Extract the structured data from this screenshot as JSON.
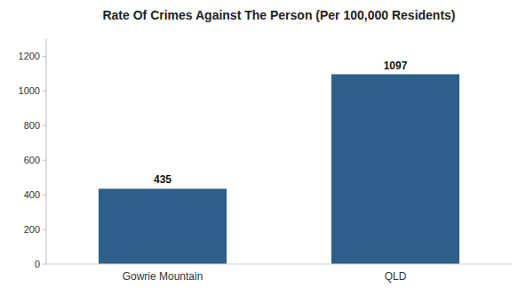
{
  "chart_data": {
    "type": "bar",
    "title": "Rate Of Crimes Against The Person (Per 100,000 Residents)",
    "categories": [
      "Gowrie Mountain",
      "QLD"
    ],
    "values": [
      435,
      1097
    ],
    "color": "#2d5f8a",
    "ylim": [
      0,
      1300
    ],
    "yticks": [
      0,
      200,
      400,
      600,
      800,
      1000,
      1200
    ],
    "grid": false,
    "data_labels": true
  }
}
